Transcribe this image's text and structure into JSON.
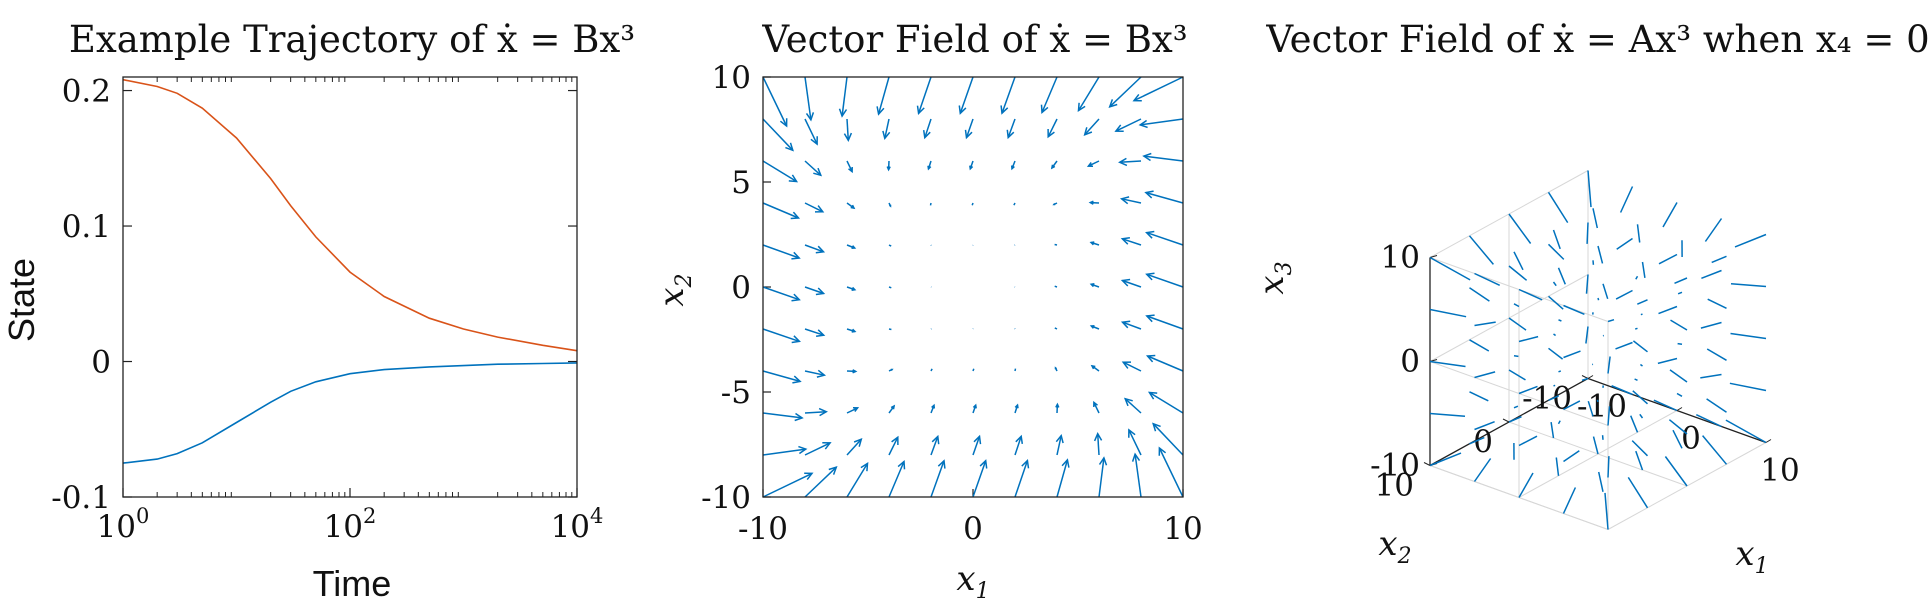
{
  "chart_data": [
    {
      "type": "line",
      "title": "Example Trajectory of ẋ = Bx³",
      "xlabel": "Time",
      "ylabel": "State",
      "xscale": "log",
      "xlim": [
        1,
        10000
      ],
      "ylim": [
        -0.1,
        0.21
      ],
      "xticks": [
        {
          "v": 1,
          "base": "10",
          "exp": "0"
        },
        {
          "v": 100,
          "base": "10",
          "exp": "2"
        },
        {
          "v": 10000,
          "base": "10",
          "exp": "4"
        }
      ],
      "yticks": [
        {
          "v": -0.1,
          "label": "-0.1"
        },
        {
          "v": 0,
          "label": "0"
        },
        {
          "v": 0.1,
          "label": "0.1"
        },
        {
          "v": 0.2,
          "label": "0.2"
        }
      ],
      "series": [
        {
          "color": "#d95319",
          "x": [
            1,
            2,
            3,
            5,
            10,
            20,
            30,
            50,
            100,
            200,
            500,
            1000,
            2000,
            5000,
            10000
          ],
          "y": [
            0.208,
            0.203,
            0.198,
            0.187,
            0.165,
            0.135,
            0.115,
            0.092,
            0.066,
            0.048,
            0.032,
            0.024,
            0.018,
            0.012,
            0.008
          ]
        },
        {
          "color": "#0072bd",
          "x": [
            1,
            2,
            3,
            5,
            10,
            20,
            30,
            50,
            100,
            200,
            500,
            1000,
            2000,
            5000,
            10000
          ],
          "y": [
            -0.075,
            -0.072,
            -0.068,
            -0.06,
            -0.045,
            -0.03,
            -0.022,
            -0.015,
            -0.009,
            -0.006,
            -0.004,
            -0.003,
            -0.002,
            -0.0015,
            -0.001
          ]
        }
      ]
    },
    {
      "type": "quiver",
      "title": "Vector Field of ẋ = Bx³",
      "xlabel": "x1",
      "ylabel": "x2",
      "xlim": [
        -10,
        10
      ],
      "ylim": [
        -10,
        10
      ],
      "xticks": [
        {
          "v": -10,
          "label": "-10"
        },
        {
          "v": 0,
          "label": "0"
        },
        {
          "v": 10,
          "label": "10"
        }
      ],
      "yticks": [
        {
          "v": -10,
          "label": "-10"
        },
        {
          "v": -5,
          "label": "-5"
        },
        {
          "v": 0,
          "label": "0"
        },
        {
          "v": 5,
          "label": "5"
        },
        {
          "v": 10,
          "label": "10"
        }
      ],
      "grid_step": 2,
      "field": "cubic-inward-rotational",
      "color": "#0072bd"
    },
    {
      "type": "quiver3d",
      "title": "Vector Field of ẋ = Ax³ when x₄ = 0",
      "xlabel": "x1",
      "ylabel": "x2",
      "zlabel": "x3",
      "range": [
        -10,
        10
      ],
      "xticks": [
        {
          "v": -10,
          "label": "-10"
        },
        {
          "v": 0,
          "label": "0"
        },
        {
          "v": 10,
          "label": "10"
        }
      ],
      "yticks": [
        {
          "v": -10,
          "label": "-10"
        },
        {
          "v": 0,
          "label": "0"
        },
        {
          "v": 10,
          "label": "10"
        }
      ],
      "zticks": [
        {
          "v": -10,
          "label": "-10"
        },
        {
          "v": 0,
          "label": "0"
        },
        {
          "v": 10,
          "label": "10"
        }
      ],
      "grid": true,
      "color": "#0072bd"
    }
  ]
}
